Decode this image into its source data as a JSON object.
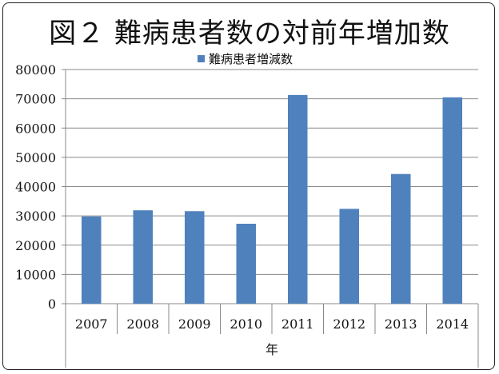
{
  "chart_data": {
    "type": "bar",
    "title": "図２ 難病患者数の対前年増加数",
    "xlabel": "年",
    "ylabel": "",
    "ylim": [
      0,
      80000
    ],
    "y_ticks": [
      0,
      10000,
      20000,
      30000,
      40000,
      50000,
      60000,
      70000,
      80000
    ],
    "categories": [
      "2007",
      "2008",
      "2009",
      "2010",
      "2011",
      "2012",
      "2013",
      "2014"
    ],
    "series": [
      {
        "name": "難病患者増減数",
        "color": "#4F81BD",
        "values": [
          29800,
          31900,
          31600,
          27300,
          71300,
          32400,
          44300,
          70500
        ]
      }
    ],
    "legend_position": "top",
    "grid": true
  }
}
